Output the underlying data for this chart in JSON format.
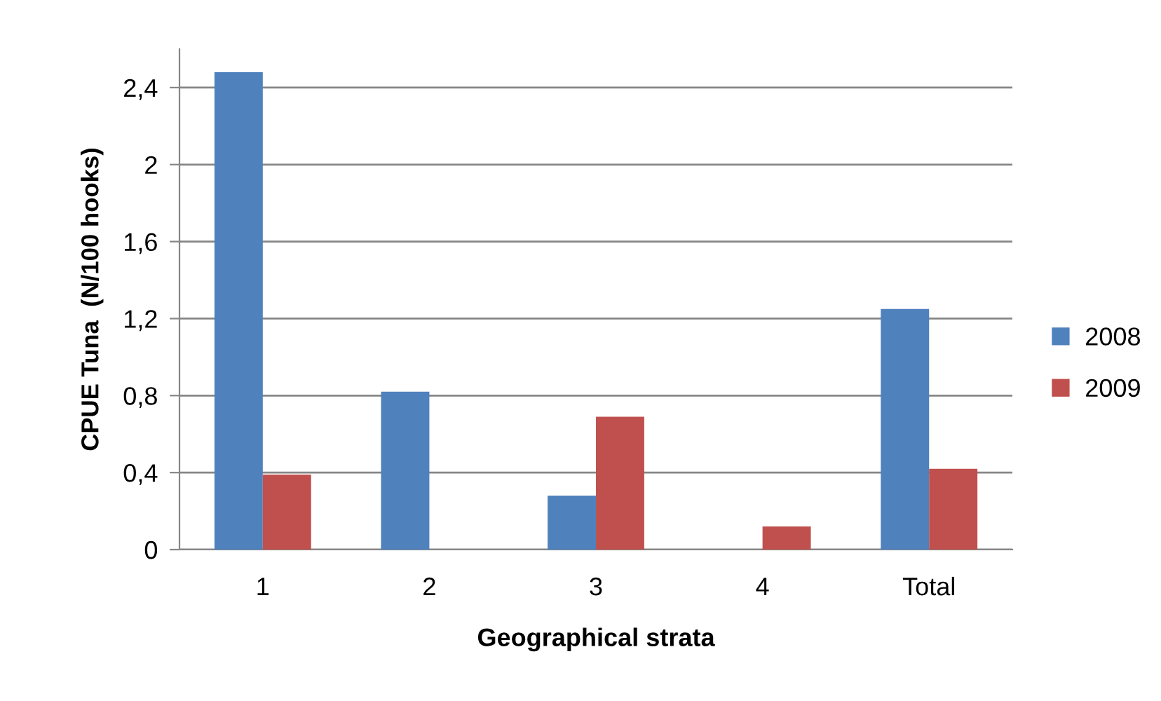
{
  "chart_data": {
    "type": "bar",
    "xlabel": "Geographical strata",
    "ylabel": "CPUE Tuna  (N/100 hooks)",
    "categories": [
      "1",
      "2",
      "3",
      "4",
      "Total"
    ],
    "series": [
      {
        "name": "2008",
        "color": "#4f81bd",
        "values": [
          2.48,
          0.82,
          0.28,
          null,
          1.25
        ]
      },
      {
        "name": "2009",
        "color": "#c0504d",
        "values": [
          0.39,
          null,
          0.69,
          0.12,
          0.42
        ]
      }
    ],
    "ylim": [
      0,
      2.6
    ],
    "yticks": [
      0,
      {
        "value": 0.4,
        "label": "0,4"
      },
      {
        "value": 0.8,
        "label": "0,8"
      },
      {
        "value": 1.2,
        "label": "1,2"
      },
      {
        "value": 1.6,
        "label": "1,6"
      },
      2,
      {
        "value": 2.4,
        "label": "2,4"
      }
    ],
    "grid": "y",
    "legend": "right"
  }
}
